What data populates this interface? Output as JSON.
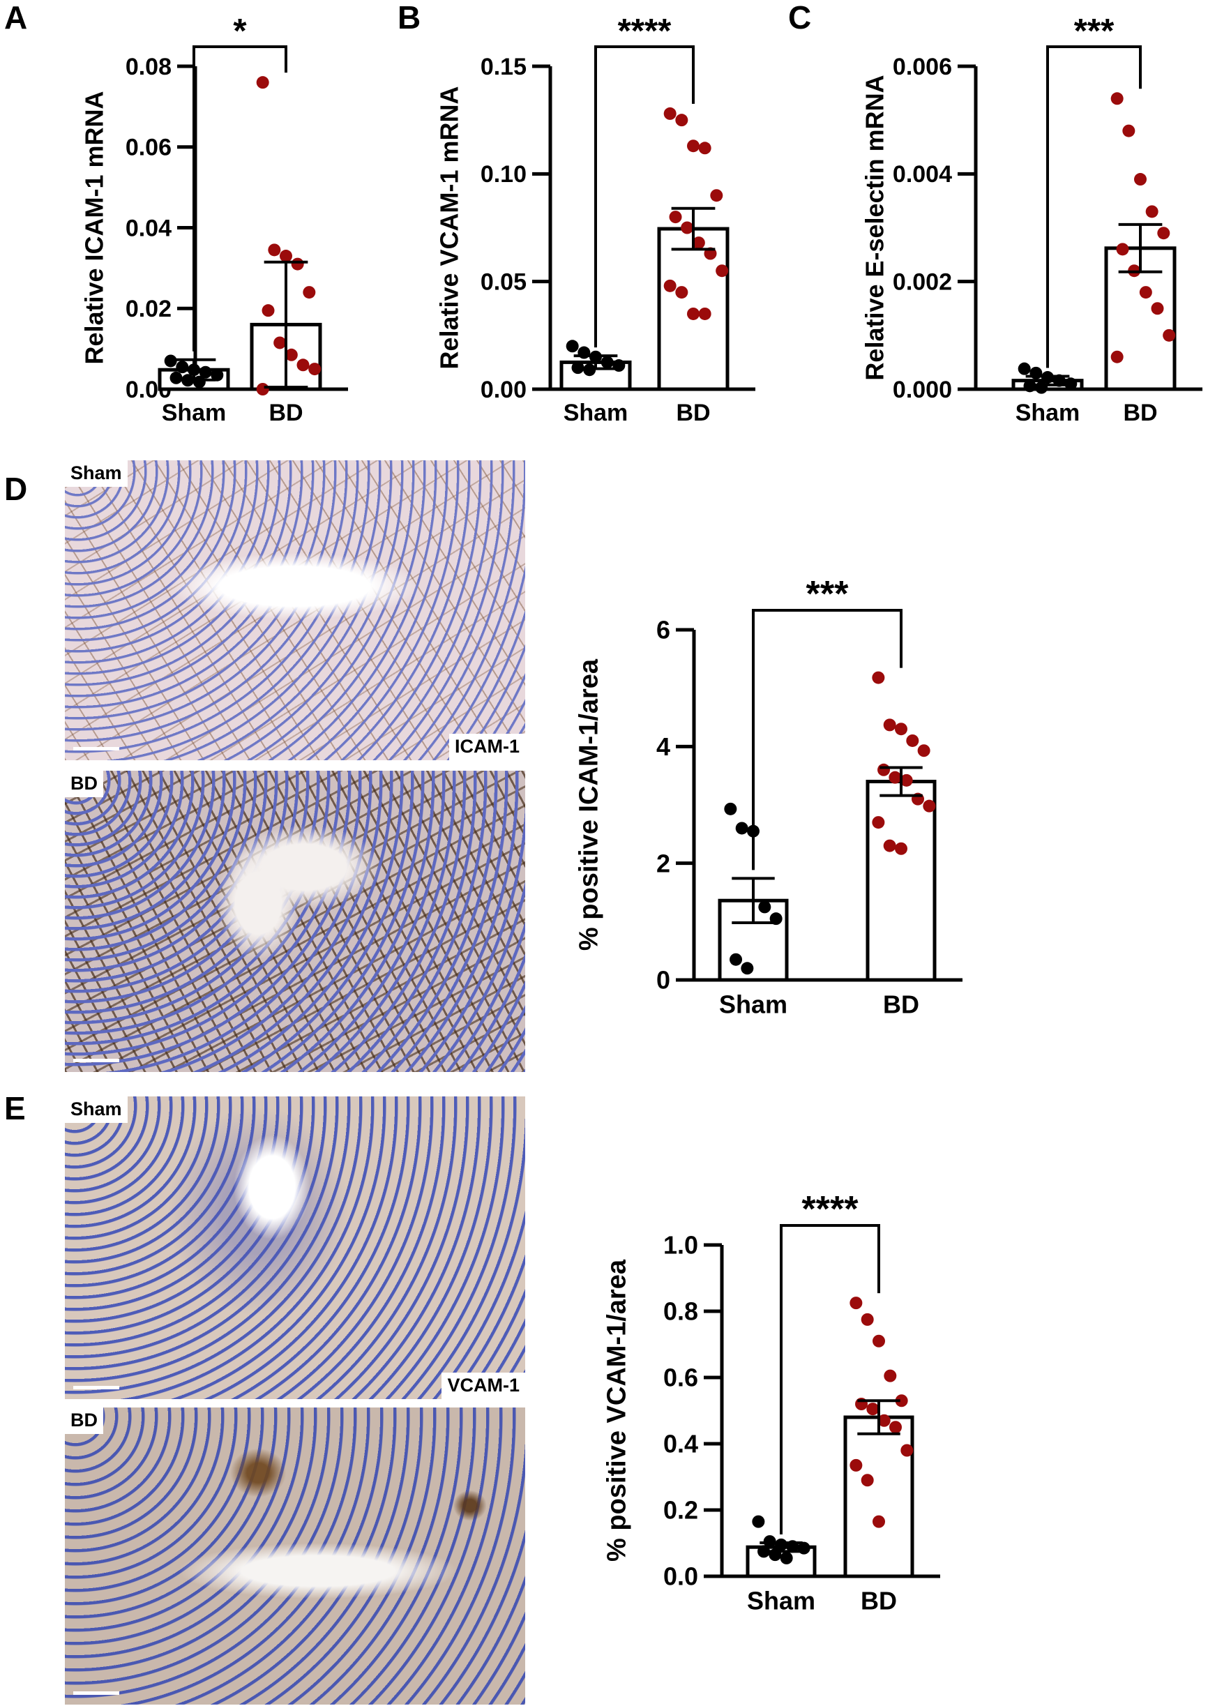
{
  "colors": {
    "sham_dot": "#000000",
    "bd_dot": "#9b0b0b",
    "axis": "#000000",
    "bar_fill": "#ffffff"
  },
  "panels": {
    "A": {
      "letter": "A",
      "chart_index": 0
    },
    "B": {
      "letter": "B",
      "chart_index": 1
    },
    "C": {
      "letter": "C",
      "chart_index": 2
    },
    "D": {
      "letter": "D",
      "chart_index": 3,
      "micrographs": [
        {
          "tag": "Sham",
          "marker": "ICAM-1"
        },
        {
          "tag": "BD",
          "marker": ""
        }
      ]
    },
    "E": {
      "letter": "E",
      "chart_index": 4,
      "micrographs": [
        {
          "tag": "Sham",
          "marker": "VCAM-1"
        },
        {
          "tag": "BD",
          "marker": ""
        }
      ]
    }
  },
  "chart_data": [
    {
      "type": "bar",
      "ylabel": "Relative ICAM-1 mRNA",
      "categories": [
        "Sham",
        "BD"
      ],
      "ylim": [
        0,
        0.08
      ],
      "yticks": [
        0,
        0.02,
        0.04,
        0.06,
        0.08
      ],
      "ytick_labels": [
        "0.00",
        "0.02",
        "0.04",
        "0.06",
        "0.08"
      ],
      "means": [
        0.0048,
        0.016
      ],
      "errors": [
        0.0025,
        0.0155
      ],
      "points": [
        [
          0.007,
          0.0055,
          0.0048,
          0.0042,
          0.0035,
          0.0028,
          0.0022,
          0.0018
        ],
        [
          0.076,
          0.0345,
          0.033,
          0.031,
          0.024,
          0.0195,
          0.0115,
          0.0085,
          0.006,
          0.005,
          0.0
        ]
      ],
      "significance": "*"
    },
    {
      "type": "bar",
      "ylabel": "Relative VCAM-1 mRNA",
      "categories": [
        "Sham",
        "BD"
      ],
      "ylim": [
        0,
        0.15
      ],
      "yticks": [
        0,
        0.05,
        0.1,
        0.15
      ],
      "ytick_labels": [
        "0.00",
        "0.05",
        "0.10",
        "0.15"
      ],
      "means": [
        0.0125,
        0.0745
      ],
      "errors": [
        0.003,
        0.0095
      ],
      "points": [
        [
          0.02,
          0.017,
          0.015,
          0.0125,
          0.011,
          0.01,
          0.009
        ],
        [
          0.128,
          0.125,
          0.113,
          0.112,
          0.09,
          0.08,
          0.075,
          0.068,
          0.063,
          0.055,
          0.048,
          0.045,
          0.035,
          0.035
        ]
      ],
      "significance": "****"
    },
    {
      "type": "bar",
      "ylabel": "Relative E-selectin mRNA",
      "categories": [
        "Sham",
        "BD"
      ],
      "ylim": [
        0,
        0.006
      ],
      "yticks": [
        0,
        0.002,
        0.004,
        0.006
      ],
      "ytick_labels": [
        "0.000",
        "0.002",
        "0.004",
        "0.006"
      ],
      "means": [
        0.00016,
        0.00262
      ],
      "errors": [
        8e-05,
        0.00044
      ],
      "points": [
        [
          0.00038,
          0.0003,
          0.00022,
          0.00016,
          0.0001,
          6e-05,
          3e-05
        ],
        [
          0.0054,
          0.0048,
          0.0039,
          0.0033,
          0.0029,
          0.0026,
          0.0022,
          0.0018,
          0.0015,
          0.001,
          0.0006
        ]
      ],
      "significance": "***"
    },
    {
      "type": "bar",
      "ylabel": "% positive ICAM-1/area",
      "categories": [
        "Sham",
        "BD"
      ],
      "ylim": [
        0,
        6
      ],
      "yticks": [
        0,
        2,
        4,
        6
      ],
      "ytick_labels": [
        "0",
        "2",
        "4",
        "6"
      ],
      "means": [
        1.36,
        3.4
      ],
      "errors": [
        0.38,
        0.24
      ],
      "points": [
        [
          2.93,
          2.6,
          2.55,
          1.25,
          1.05,
          0.35,
          0.2
        ],
        [
          5.18,
          4.37,
          4.3,
          4.1,
          3.93,
          3.6,
          3.47,
          3.42,
          3.1,
          2.98,
          2.7,
          2.3,
          2.25
        ]
      ],
      "significance": "***"
    },
    {
      "type": "bar",
      "ylabel": "% positive VCAM-1/area",
      "categories": [
        "Sham",
        "BD"
      ],
      "ylim": [
        0,
        1.0
      ],
      "yticks": [
        0,
        0.2,
        0.4,
        0.6,
        0.8,
        1.0
      ],
      "ytick_labels": [
        "0.0",
        "0.2",
        "0.4",
        "0.6",
        "0.8",
        "1.0"
      ],
      "means": [
        0.088,
        0.48
      ],
      "errors": [
        0.013,
        0.05
      ],
      "points": [
        [
          0.165,
          0.105,
          0.095,
          0.09,
          0.085,
          0.075,
          0.065,
          0.055
        ],
        [
          0.825,
          0.775,
          0.71,
          0.605,
          0.53,
          0.52,
          0.505,
          0.47,
          0.45,
          0.38,
          0.335,
          0.29,
          0.165
        ]
      ],
      "significance": "****"
    }
  ]
}
